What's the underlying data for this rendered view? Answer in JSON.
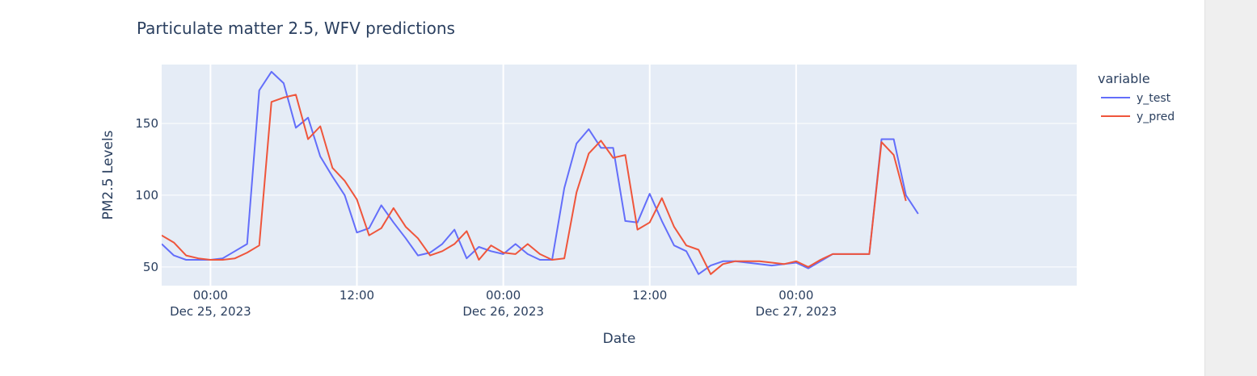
{
  "chart_data": {
    "type": "line",
    "title": "Particulate matter 2.5, WFV predictions",
    "xlabel": "Date",
    "ylabel": "PM2.5 Levels",
    "legend_title": "variable",
    "legend_position": "right",
    "grid": true,
    "x_start": "2023-12-24T20:00",
    "x_step_hours": 1,
    "xlim": [
      "2023-12-24T20:00",
      "2023-12-27T23:00"
    ],
    "ylim": [
      37,
      191
    ],
    "y_ticks": [
      {
        "value": 50,
        "label": "50"
      },
      {
        "value": 100,
        "label": "100"
      },
      {
        "value": 150,
        "label": "150"
      }
    ],
    "x_ticks": [
      {
        "time": "2023-12-25T00:00",
        "line1": "00:00",
        "line2": "Dec 25, 2023"
      },
      {
        "time": "2023-12-25T12:00",
        "line1": "12:00",
        "line2": ""
      },
      {
        "time": "2023-12-26T00:00",
        "line1": "00:00",
        "line2": "Dec 26, 2023"
      },
      {
        "time": "2023-12-26T12:00",
        "line1": "12:00",
        "line2": ""
      },
      {
        "time": "2023-12-27T00:00",
        "line1": "00:00",
        "line2": "Dec 27, 2023"
      }
    ],
    "series": [
      {
        "name": "y_test",
        "color": "#636efa",
        "values": [
          66,
          58,
          55,
          55,
          55,
          56,
          61,
          66,
          173,
          186,
          178,
          147,
          154,
          127,
          113,
          100,
          74,
          77,
          93,
          81,
          70,
          58,
          60,
          66,
          76,
          56,
          64,
          61,
          59,
          66,
          59,
          55,
          55,
          105,
          136,
          146,
          133,
          133,
          82,
          81,
          101,
          82,
          65,
          61,
          45,
          51,
          54,
          54,
          53,
          52,
          51,
          52,
          53,
          49,
          54,
          59,
          59,
          59,
          59,
          139,
          139,
          100,
          87
        ]
      },
      {
        "name": "y_pred",
        "color": "#ef553b",
        "values": [
          72,
          67,
          58,
          56,
          55,
          55,
          56,
          60,
          65,
          165,
          168,
          170,
          139,
          148,
          119,
          110,
          97,
          72,
          77,
          91,
          78,
          70,
          58,
          61,
          66,
          75,
          55,
          65,
          60,
          59,
          66,
          59,
          55,
          56,
          102,
          129,
          138,
          126,
          128,
          76,
          81,
          98,
          78,
          65,
          62,
          45,
          52,
          54,
          54,
          54,
          53,
          52,
          54,
          50,
          55,
          59,
          59,
          59,
          59,
          137,
          128,
          96
        ]
      }
    ]
  }
}
